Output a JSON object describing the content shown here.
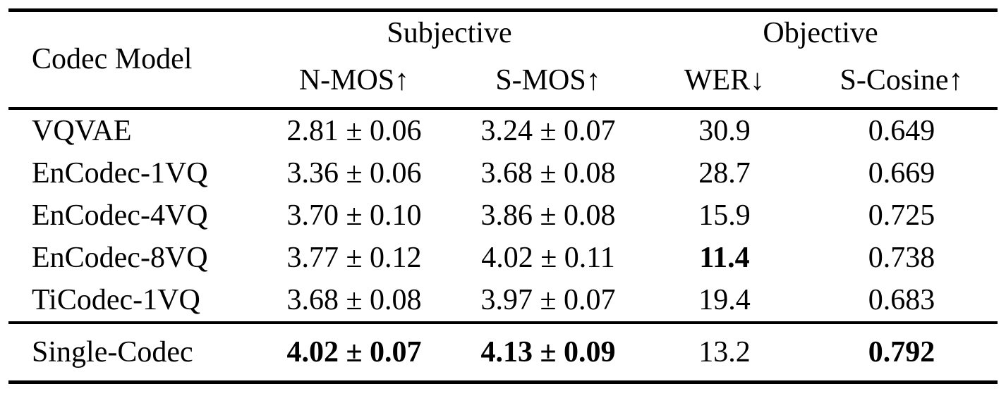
{
  "header": {
    "codec_model": "Codec Model",
    "groups": [
      {
        "label": "Subjective",
        "columns": [
          "N-MOS↑",
          "S-MOS↑"
        ]
      },
      {
        "label": "Objective",
        "columns": [
          "WER↓",
          "S-Cosine↑"
        ]
      }
    ]
  },
  "rows": [
    {
      "model": "VQVAE",
      "n_mos": "2.81 ± 0.06",
      "s_mos": "3.24 ± 0.07",
      "wer": "30.9",
      "s_cosine": "0.649",
      "bold_cells": []
    },
    {
      "model": "EnCodec-1VQ",
      "n_mos": "3.36 ± 0.06",
      "s_mos": "3.68 ± 0.08",
      "wer": "28.7",
      "s_cosine": "0.669",
      "bold_cells": []
    },
    {
      "model": "EnCodec-4VQ",
      "n_mos": "3.70 ± 0.10",
      "s_mos": "3.86 ± 0.08",
      "wer": "15.9",
      "s_cosine": "0.725",
      "bold_cells": []
    },
    {
      "model": "EnCodec-8VQ",
      "n_mos": "3.77 ± 0.12",
      "s_mos": "4.02 ± 0.11",
      "wer": "11.4",
      "s_cosine": "0.738",
      "bold_cells": [
        "wer"
      ]
    },
    {
      "model": "TiCodec-1VQ",
      "n_mos": "3.68 ± 0.08",
      "s_mos": "3.97 ± 0.07",
      "wer": "19.4",
      "s_cosine": "0.683",
      "bold_cells": []
    }
  ],
  "highlight_row": {
    "model": "Single-Codec",
    "n_mos": "4.02 ± 0.07",
    "s_mos": "4.13 ± 0.09",
    "wer": "13.2",
    "s_cosine": "0.792",
    "bold_cells": [
      "n_mos",
      "s_mos",
      "s_cosine"
    ]
  },
  "colors": {
    "text": "#000000",
    "rule": "#000000",
    "background": "#ffffff"
  }
}
